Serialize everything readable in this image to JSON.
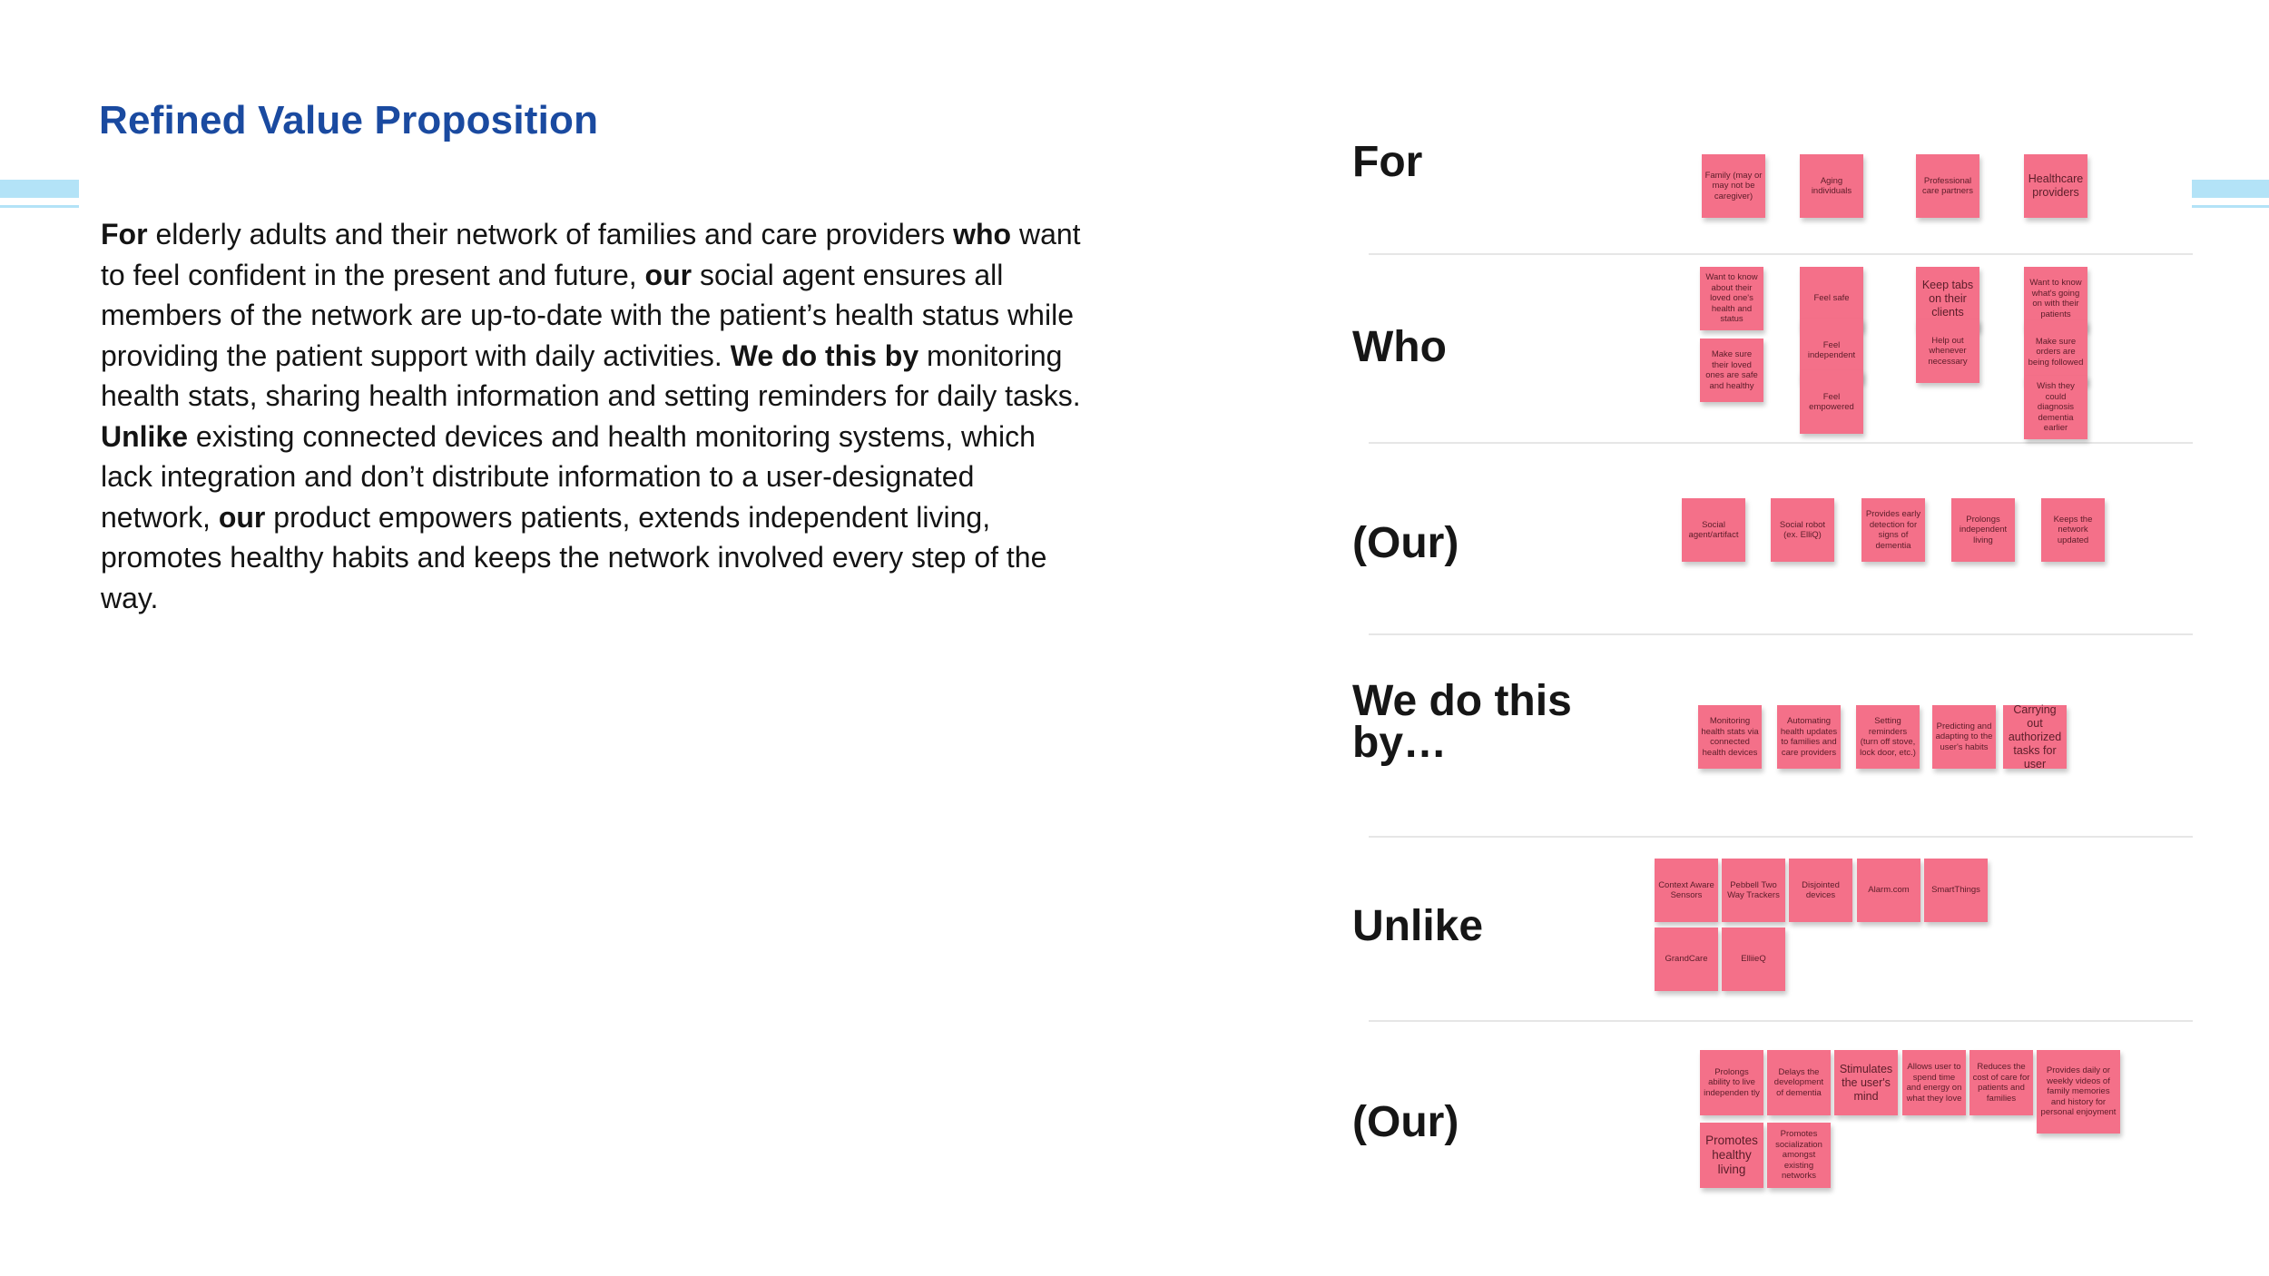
{
  "colors": {
    "title": "#1a4aa0",
    "sticky": "#f47089",
    "accent": "#b3e3f7"
  },
  "title": "Refined Value Proposition",
  "body": {
    "for_kw": "For",
    "t1": " elderly adults and their network of families and care providers ",
    "who_kw": "who",
    "t2": " want to feel confident in the present and future, ",
    "our_kw1": "our",
    "t3": " social agent ensures all members of the network are up-to-date with the patient’s health status while providing the patient support with daily activities. ",
    "wedothis_kw": "We do this by",
    "t4": " monitoring health stats, sharing health information and setting reminders for daily tasks. ",
    "unlike_kw": "Unlike",
    "t5": " existing connected devices and health monitoring systems, which lack integration and don’t distribute information to a user-designated network, ",
    "our_kw2": "our",
    "t6": " product empowers patients, extends independent living, promotes healthy habits and keeps the network involved every step of the way."
  },
  "rows": {
    "for": "For",
    "who": "Who",
    "our1": "(Our)",
    "wedothis": "We do this by…",
    "unlike": "Unlike",
    "our2": "(Our)"
  },
  "notes": {
    "for": [
      "Family (may or may not be caregiver)",
      "Aging individuals",
      "Professional care partners",
      "Healthcare providers"
    ],
    "who": [
      "Want to know about their loved one's health and status",
      "Make sure their loved ones are safe and healthy",
      "Feel safe",
      "Feel independent",
      "Feel empowered",
      "Keep tabs on their clients",
      "Help out whenever necessary",
      "Want to know what's going on with their patients",
      "Make sure orders are being followed",
      "Wish they could diagnosis dementia earlier"
    ],
    "our1": [
      "Social agent/artifact",
      "Social robot (ex. ElliQ)",
      "Provides early detection for signs of dementia",
      "Prolongs independent living",
      "Keeps the network updated"
    ],
    "wedothis": [
      "Monitoring health stats via connected health devices",
      "Automating health updates to families and care providers",
      "Setting reminders (turn off stove, lock door, etc.)",
      "Predicting and adapting to the user's habits",
      "Carrying out authorized tasks for user"
    ],
    "unlike": [
      "Context Aware Sensors",
      "Pebbell Two Way Trackers",
      "Disjointed devices",
      "Alarm.com",
      "SmartThings",
      "GrandCare",
      "ElliieQ"
    ],
    "our2": [
      "Prolongs ability to live independen tly",
      "Delays the development of dementia",
      "Stimulates the user's mind",
      "Allows user to spend time and energy on what they love",
      "Reduces the cost of care for patients and families",
      "Provides daily or weekly videos of family memories and history for personal enjoyment",
      "Promotes healthy living",
      "Promotes socialization amongst existing networks"
    ]
  }
}
